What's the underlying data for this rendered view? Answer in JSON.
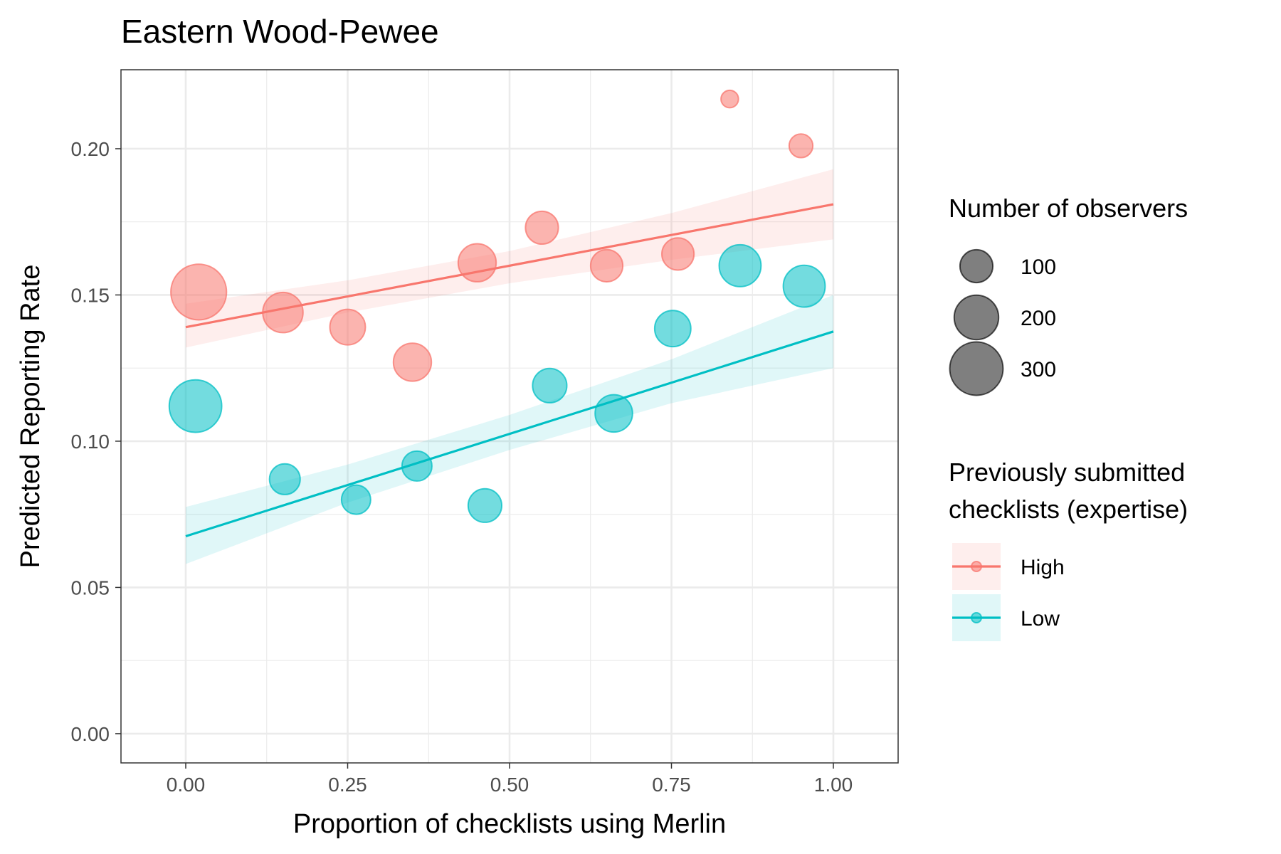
{
  "chart_data": {
    "type": "scatter",
    "title": "Eastern Wood-Pewee",
    "xlabel": "Proportion of checklists using Merlin",
    "ylabel": "Predicted Reporting Rate",
    "xlim": [
      -0.1,
      1.1
    ],
    "ylim": [
      -0.01,
      0.227
    ],
    "x_ticks": [
      "0.00",
      "0.25",
      "0.50",
      "0.75",
      "1.00"
    ],
    "y_ticks": [
      "0.00",
      "0.05",
      "0.10",
      "0.15",
      "0.20"
    ],
    "x_tick_values": [
      0,
      0.25,
      0.5,
      0.75,
      1.0
    ],
    "y_tick_values": [
      0,
      0.05,
      0.1,
      0.15,
      0.2
    ],
    "grid": true,
    "legend_position": "right",
    "size_legend": {
      "title": "Number of observers",
      "entries": [
        {
          "label": "100",
          "value": 100
        },
        {
          "label": "200",
          "value": 200
        },
        {
          "label": "300",
          "value": 300
        }
      ]
    },
    "color_legend": {
      "title_lines": [
        "Previously submitted",
        "checklists (expertise)"
      ]
    },
    "series": [
      {
        "name": "High",
        "color": "#F8766D",
        "points": [
          {
            "x": 0.02,
            "y": 0.151,
            "observers": 330
          },
          {
            "x": 0.15,
            "y": 0.144,
            "observers": 160
          },
          {
            "x": 0.25,
            "y": 0.139,
            "observers": 120
          },
          {
            "x": 0.35,
            "y": 0.127,
            "observers": 140
          },
          {
            "x": 0.45,
            "y": 0.161,
            "observers": 140
          },
          {
            "x": 0.55,
            "y": 0.173,
            "observers": 100
          },
          {
            "x": 0.65,
            "y": 0.16,
            "observers": 95
          },
          {
            "x": 0.76,
            "y": 0.164,
            "observers": 95
          },
          {
            "x": 0.84,
            "y": 0.217,
            "observers": 20
          },
          {
            "x": 0.95,
            "y": 0.201,
            "observers": 45
          }
        ],
        "fit": {
          "x": [
            0,
            1
          ],
          "y": [
            0.139,
            0.181
          ]
        },
        "band": {
          "x": [
            0,
            0.25,
            0.5,
            0.75,
            1
          ],
          "lower": [
            0.132,
            0.144,
            0.154,
            0.162,
            0.169
          ],
          "upper": [
            0.147,
            0.155,
            0.165,
            0.178,
            0.193
          ]
        }
      },
      {
        "name": "Low",
        "color": "#00BFC4",
        "points": [
          {
            "x": 0.015,
            "y": 0.112,
            "observers": 290
          },
          {
            "x": 0.153,
            "y": 0.087,
            "observers": 85
          },
          {
            "x": 0.263,
            "y": 0.08,
            "observers": 75
          },
          {
            "x": 0.357,
            "y": 0.0915,
            "observers": 80
          },
          {
            "x": 0.462,
            "y": 0.078,
            "observers": 105
          },
          {
            "x": 0.562,
            "y": 0.119,
            "observers": 110
          },
          {
            "x": 0.661,
            "y": 0.1095,
            "observers": 135
          },
          {
            "x": 0.752,
            "y": 0.1385,
            "observers": 125
          },
          {
            "x": 0.856,
            "y": 0.16,
            "observers": 175
          },
          {
            "x": 0.955,
            "y": 0.153,
            "observers": 175
          }
        ],
        "fit": {
          "x": [
            0,
            1
          ],
          "y": [
            0.0675,
            0.1375
          ]
        },
        "band": {
          "x": [
            0,
            0.25,
            0.5,
            0.75,
            1
          ],
          "lower": [
            0.058,
            0.079,
            0.097,
            0.113,
            0.125
          ],
          "upper": [
            0.0775,
            0.092,
            0.109,
            0.128,
            0.15
          ]
        }
      }
    ]
  }
}
